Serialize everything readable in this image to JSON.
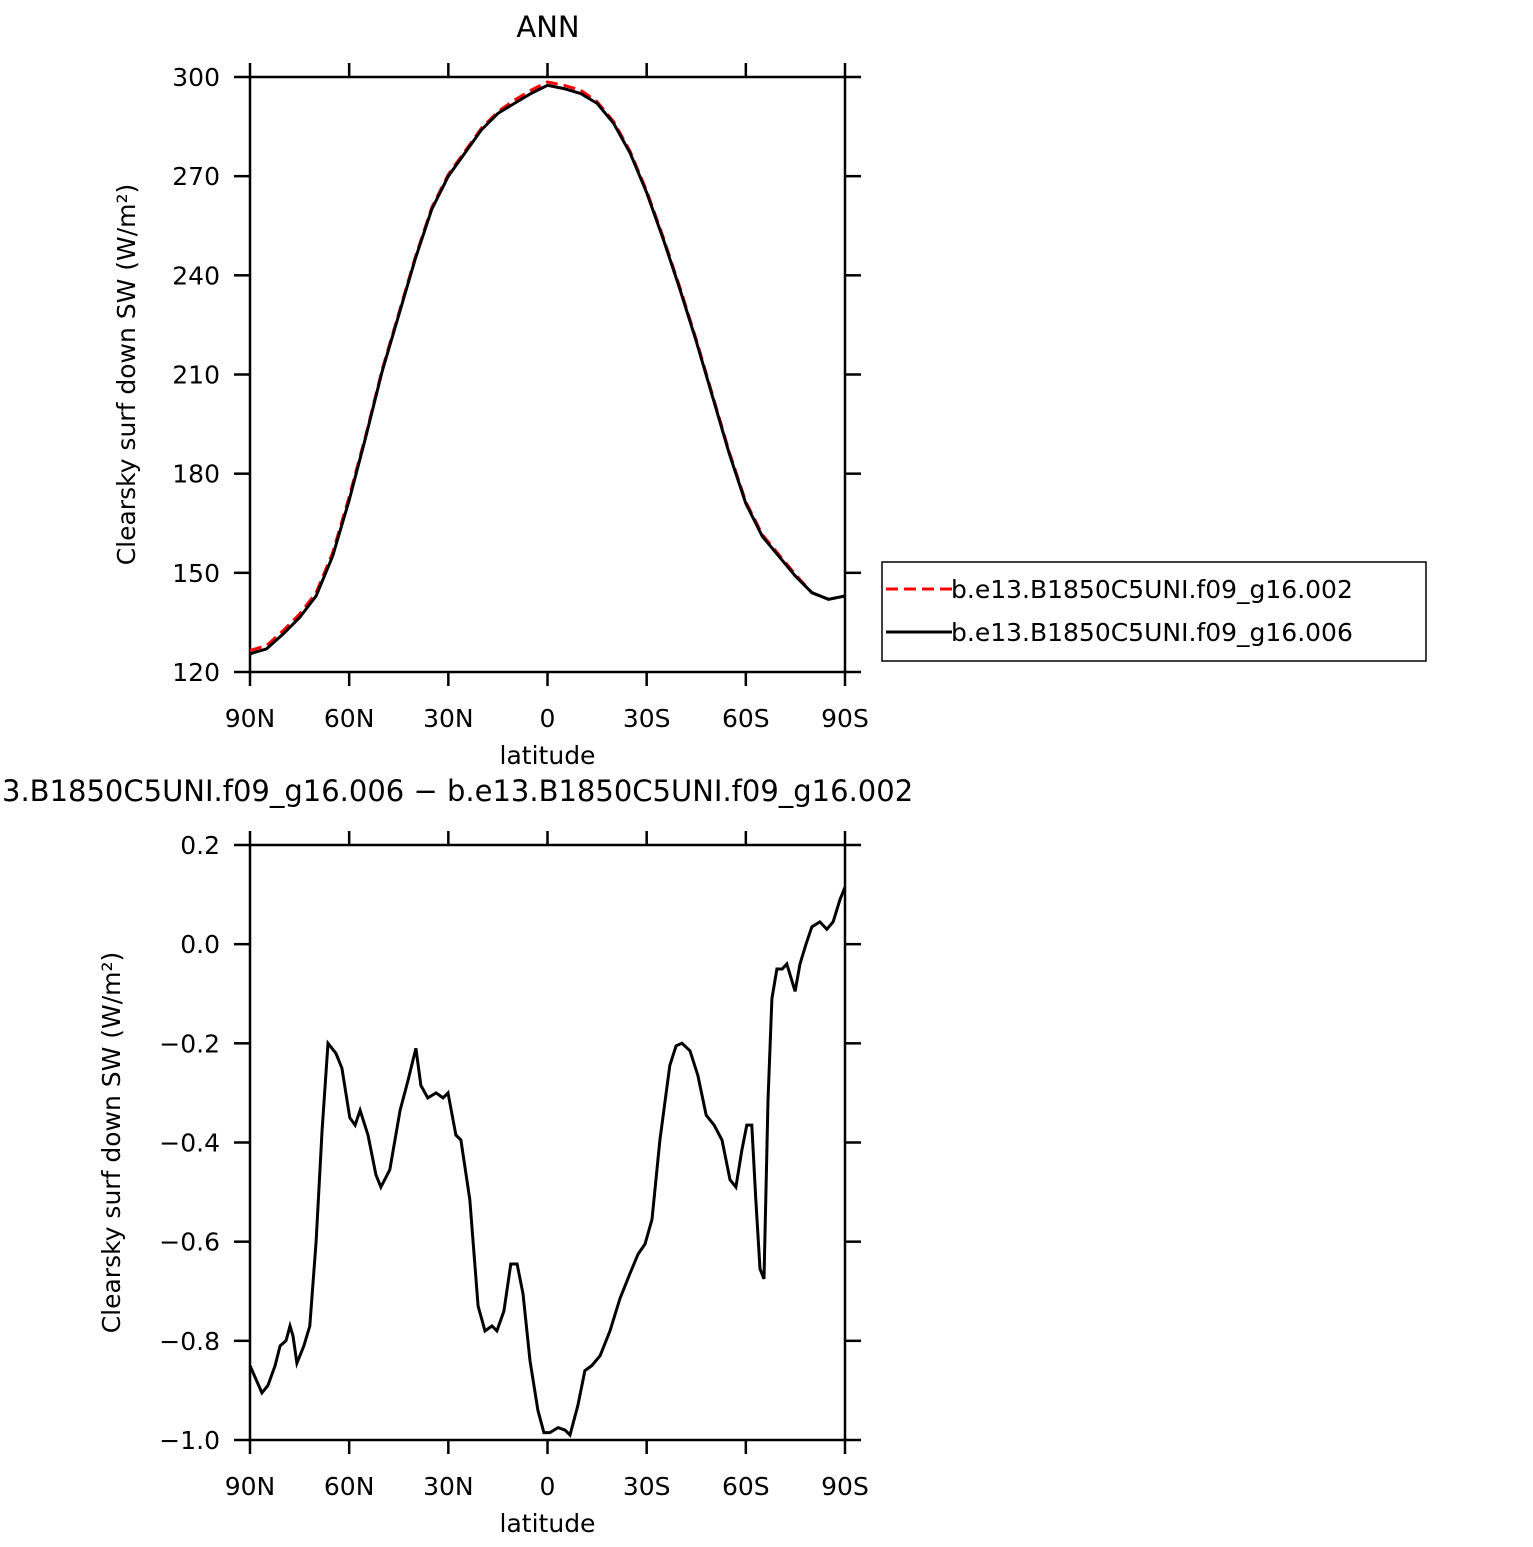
{
  "chart_data": [
    {
      "type": "line",
      "title": "ANN",
      "xlabel": "latitude",
      "ylabel": "Clearsky surf down SW (W/m²)",
      "xlim": [
        90,
        -90
      ],
      "ylim": [
        120,
        300
      ],
      "xticks": [
        {
          "value": 90,
          "label": "90N"
        },
        {
          "value": 60,
          "label": "60N"
        },
        {
          "value": 30,
          "label": "30N"
        },
        0,
        {
          "value": -30,
          "label": "30S"
        },
        {
          "value": -60,
          "label": "60S"
        },
        {
          "value": -90,
          "label": "90S"
        }
      ],
      "yticks": [
        120,
        150,
        180,
        210,
        240,
        270,
        300
      ],
      "legend": "right",
      "x": [
        90,
        85,
        80,
        75,
        70,
        65,
        60,
        55,
        50,
        45,
        40,
        35,
        30,
        25,
        20,
        15,
        10,
        5,
        0,
        -5,
        -10,
        -15,
        -20,
        -25,
        -30,
        -35,
        -40,
        -45,
        -50,
        -55,
        -60,
        -65,
        -70,
        -75,
        -80,
        -85,
        -90
      ],
      "series": [
        {
          "name": "b.e13.B1850C5UNI.f09_g16.002",
          "color": "#ff0000",
          "linestyle": "dashed",
          "values": [
            126.5,
            128,
            132.5,
            137.5,
            144,
            156,
            173,
            191.5,
            211.5,
            228.5,
            245.5,
            260.5,
            270.5,
            277.5,
            284.5,
            289.5,
            293,
            296,
            298.5,
            297.5,
            296,
            292.5,
            286.5,
            277.5,
            265.5,
            251.5,
            236.5,
            220.5,
            203.5,
            186.5,
            171.5,
            161.5,
            155.5,
            149.5,
            144,
            142,
            143
          ]
        },
        {
          "name": "b.e13.B1850C5UNI.f09_g16.006",
          "color": "#000000",
          "linestyle": "solid",
          "values": [
            125.5,
            127,
            131.5,
            136.5,
            143,
            155,
            172,
            191,
            211,
            228,
            245,
            260,
            270,
            277,
            284,
            289,
            292,
            295,
            297.5,
            296.5,
            295,
            292,
            286,
            277,
            265,
            251,
            236,
            220,
            203,
            186,
            171,
            161,
            155,
            149,
            144,
            142,
            143
          ]
        }
      ]
    },
    {
      "type": "line",
      "title": "3.B1850C5UNI.f09_g16.006 − b.e13.B1850C5UNI.f09_g16.002",
      "xlabel": "latitude",
      "ylabel": "Clearsky surf down SW (W/m²)",
      "xlim": [
        90,
        -90
      ],
      "ylim": [
        -1.0,
        0.2
      ],
      "xticks": [
        {
          "value": 90,
          "label": "90N"
        },
        {
          "value": 60,
          "label": "60N"
        },
        {
          "value": 30,
          "label": "30N"
        },
        0,
        {
          "value": -30,
          "label": "30S"
        },
        {
          "value": -60,
          "label": "60S"
        },
        {
          "value": -90,
          "label": "90S"
        }
      ],
      "yticks": [
        {
          "value": -1.0,
          "label": "−1.0"
        },
        {
          "value": -0.8,
          "label": "−0.8"
        },
        {
          "value": -0.6,
          "label": "−0.6"
        },
        {
          "value": -0.4,
          "label": "−0.4"
        },
        {
          "value": -0.2,
          "label": "−0.2"
        },
        {
          "value": 0.0,
          "label": "0.0"
        },
        0.2
      ],
      "x": [
        90,
        86.4,
        84.6,
        82.4,
        80.9,
        79.1,
        77.9,
        77,
        75.8,
        73.7,
        71.9,
        70,
        68.2,
        66.4,
        64,
        62.2,
        59.8,
        58.2,
        56.7,
        54.3,
        51.9,
        50.4,
        47.7,
        44.6,
        42.2,
        39.8,
        38.3,
        36.2,
        33.7,
        31.6,
        30.1,
        27.7,
        26.2,
        23.5,
        21,
        18.9,
        16.8,
        15.3,
        13.2,
        11.1,
        9.2,
        7.4,
        5.3,
        2.9,
        1.1,
        -0.7,
        -3.2,
        -5.3,
        -6.8,
        -9.2,
        -11.3,
        -13.4,
        -15.9,
        -18.9,
        -21.9,
        -24.9,
        -27.4,
        -29.5,
        -31.6,
        -34,
        -37,
        -38.9,
        -40.7,
        -43.1,
        -45.5,
        -48,
        -50.4,
        -52.8,
        -55.2,
        -57,
        -58.8,
        -60.3,
        -61.8,
        -63,
        -64.3,
        -65.5,
        -66.7,
        -67.9,
        -69.4,
        -71,
        -72.4,
        -74.9,
        -76.4,
        -78.2,
        -80,
        -82.4,
        -84.5,
        -86.4,
        -88.5,
        -90
      ],
      "series": [
        {
          "color": "#000000",
          "linestyle": "solid",
          "values": [
            -0.85,
            -0.905,
            -0.89,
            -0.85,
            -0.81,
            -0.8,
            -0.77,
            -0.79,
            -0.845,
            -0.81,
            -0.77,
            -0.6,
            -0.375,
            -0.2,
            -0.22,
            -0.25,
            -0.35,
            -0.365,
            -0.335,
            -0.385,
            -0.465,
            -0.49,
            -0.455,
            -0.335,
            -0.275,
            -0.21,
            -0.285,
            -0.31,
            -0.3,
            -0.31,
            -0.3,
            -0.385,
            -0.395,
            -0.515,
            -0.73,
            -0.78,
            -0.77,
            -0.78,
            -0.74,
            -0.645,
            -0.645,
            -0.705,
            -0.84,
            -0.94,
            -0.985,
            -0.985,
            -0.975,
            -0.98,
            -0.99,
            -0.93,
            -0.86,
            -0.85,
            -0.83,
            -0.78,
            -0.715,
            -0.665,
            -0.625,
            -0.605,
            -0.555,
            -0.395,
            -0.245,
            -0.205,
            -0.2,
            -0.215,
            -0.265,
            -0.345,
            -0.365,
            -0.395,
            -0.475,
            -0.49,
            -0.415,
            -0.365,
            -0.365,
            -0.515,
            -0.655,
            -0.675,
            -0.315,
            -0.11,
            -0.05,
            -0.05,
            -0.04,
            -0.095,
            -0.04,
            0.0,
            0.035,
            0.045,
            0.03,
            0.045,
            0.09,
            0.115
          ]
        }
      ]
    }
  ]
}
